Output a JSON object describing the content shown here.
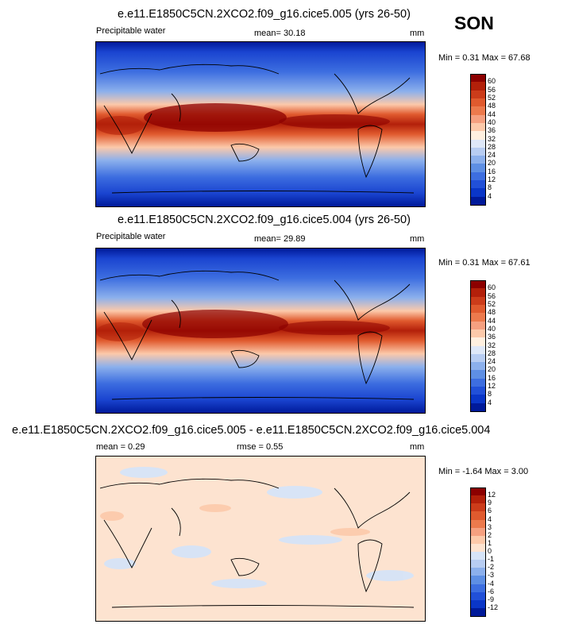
{
  "season": "SON",
  "panels": [
    {
      "title": "e.e11.E1850C5CN.2XCO2.f09_g16.cice5.005 (yrs 26-50)",
      "left_label": "Precipitable water",
      "mid_label": "mean=  30.18",
      "right_label": "mm",
      "minmax": "Min =   0.31 Max =  67.68",
      "colorbar": {
        "labels": [
          "60",
          "56",
          "52",
          "48",
          "44",
          "40",
          "36",
          "32",
          "28",
          "24",
          "20",
          "16",
          "12",
          "8",
          "4"
        ],
        "colors": [
          "#8c0000",
          "#b3200a",
          "#cc3c1a",
          "#e05a2e",
          "#ec7a4d",
          "#f5a080",
          "#fcc9aa",
          "#fff0e0",
          "#dfe8f8",
          "#b8cdf2",
          "#8cb0ec",
          "#5e8fe4",
          "#3d6ee0",
          "#2150d8",
          "#0a36c8",
          "#001a9a"
        ]
      }
    },
    {
      "title": "e.e11.E1850C5CN.2XCO2.f09_g16.cice5.004 (yrs 26-50)",
      "left_label": "Precipitable water",
      "mid_label": "mean=  29.89",
      "right_label": "mm",
      "minmax": "Min =   0.31 Max =  67.61",
      "colorbar": {
        "labels": [
          "60",
          "56",
          "52",
          "48",
          "44",
          "40",
          "36",
          "32",
          "28",
          "24",
          "20",
          "16",
          "12",
          "8",
          "4"
        ],
        "colors": [
          "#8c0000",
          "#b3200a",
          "#cc3c1a",
          "#e05a2e",
          "#ec7a4d",
          "#f5a080",
          "#fcc9aa",
          "#fff0e0",
          "#dfe8f8",
          "#b8cdf2",
          "#8cb0ec",
          "#5e8fe4",
          "#3d6ee0",
          "#2150d8",
          "#0a36c8",
          "#001a9a"
        ]
      }
    },
    {
      "title": "e.e11.E1850C5CN.2XCO2.f09_g16.cice5.005 - e.e11.E1850C5CN.2XCO2.f09_g16.cice5.004",
      "left_label": "mean =   0.29",
      "mid_label": "rmse =   0.55",
      "right_label": "mm",
      "minmax": "Min =  -1.64 Max =   3.00",
      "colorbar": {
        "labels": [
          "12",
          "9",
          "6",
          "4",
          "3",
          "2",
          "1",
          "0",
          "-1",
          "-2",
          "-3",
          "-4",
          "-6",
          "-9",
          "-12"
        ],
        "colors": [
          "#8c0000",
          "#b3200a",
          "#cc3c1a",
          "#e05a2e",
          "#ec7a4d",
          "#f5a080",
          "#fcc9aa",
          "#fde3d0",
          "#d6e4f8",
          "#b8cdf2",
          "#8cb0ec",
          "#5e8fe4",
          "#3d6ee0",
          "#2150d8",
          "#0a36c8",
          "#001a9a"
        ]
      }
    }
  ],
  "chart_data": [
    {
      "type": "heatmap",
      "title": "e.e11.E1850C5CN.2XCO2.f09_g16.cice5.005 (yrs 26-50)",
      "variable": "Precipitable water",
      "units": "mm",
      "mean": 30.18,
      "min": 0.31,
      "max": 67.68,
      "contour_levels": [
        4,
        8,
        12,
        16,
        20,
        24,
        28,
        32,
        36,
        40,
        44,
        48,
        52,
        56,
        60
      ]
    },
    {
      "type": "heatmap",
      "title": "e.e11.E1850C5CN.2XCO2.f09_g16.cice5.004 (yrs 26-50)",
      "variable": "Precipitable water",
      "units": "mm",
      "mean": 29.89,
      "min": 0.31,
      "max": 67.61,
      "contour_levels": [
        4,
        8,
        12,
        16,
        20,
        24,
        28,
        32,
        36,
        40,
        44,
        48,
        52,
        56,
        60
      ]
    },
    {
      "type": "heatmap",
      "title": "e.e11.E1850C5CN.2XCO2.f09_g16.cice5.005 - e.e11.E1850C5CN.2XCO2.f09_g16.cice5.004",
      "units": "mm",
      "mean": 0.29,
      "rmse": 0.55,
      "min": -1.64,
      "max": 3.0,
      "contour_levels": [
        -12,
        -9,
        -6,
        -4,
        -3,
        -2,
        -1,
        0,
        1,
        2,
        3,
        4,
        6,
        9,
        12
      ]
    }
  ]
}
